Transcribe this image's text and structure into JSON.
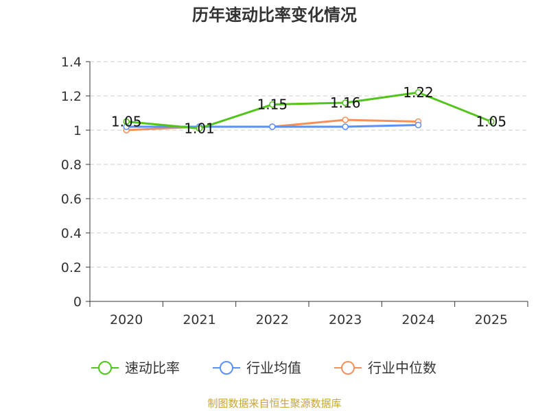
{
  "title": "历年速动比率变化情况",
  "source": "制图数据来自恒生聚源数据库",
  "colors": {
    "source_text": "#c8a43a",
    "axis": "#333333",
    "grid": "#cccccc"
  },
  "chart_data": {
    "type": "line",
    "title": "历年速动比率变化情况",
    "categories": [
      "2020",
      "2021",
      "2022",
      "2023",
      "2024",
      "2025"
    ],
    "ylim": [
      0,
      1.4
    ],
    "yticks": [
      0,
      0.2,
      0.4,
      0.6,
      0.8,
      1,
      1.2,
      1.4
    ],
    "ytick_labels": [
      "0",
      "0.2",
      "0.4",
      "0.6",
      "0.8",
      "1",
      "1.2",
      "1.4"
    ],
    "grid": true,
    "legend_position": "bottom",
    "series": [
      {
        "name": "速动比率",
        "color": "#52c41a",
        "values": [
          1.05,
          1.01,
          1.15,
          1.16,
          1.22,
          1.05
        ],
        "labels": [
          "1.05",
          "1.01",
          "1.15",
          "1.16",
          "1.22",
          "1.05"
        ],
        "show_labels": true
      },
      {
        "name": "行业均值",
        "color": "#5b8ff9",
        "values": [
          1.02,
          1.02,
          1.02,
          1.02,
          1.03,
          null
        ],
        "show_labels": false
      },
      {
        "name": "行业中位数",
        "color": "#f6905a",
        "values": [
          1.0,
          1.02,
          1.02,
          1.06,
          1.05,
          null
        ],
        "show_labels": false
      }
    ]
  }
}
